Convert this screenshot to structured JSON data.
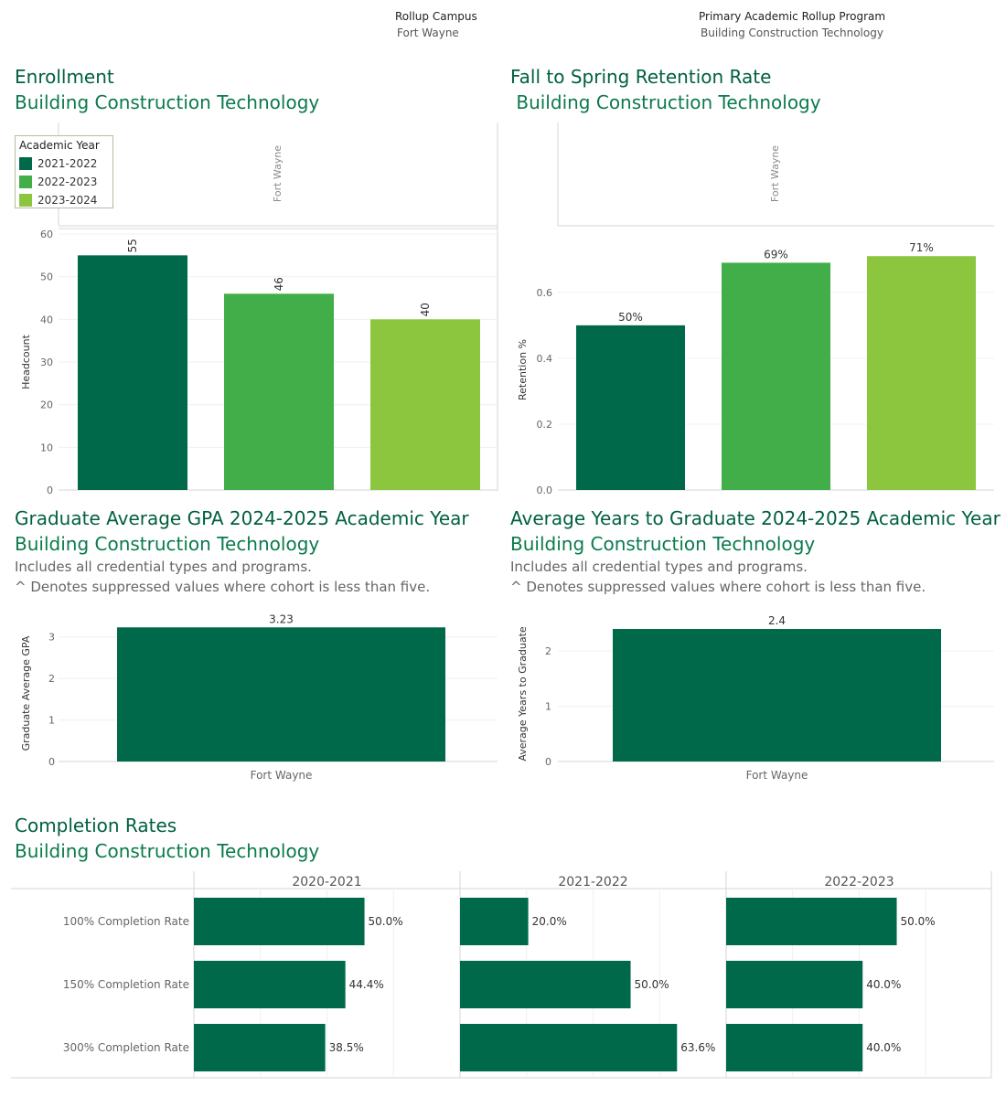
{
  "filters": {
    "campus_label": "Rollup Campus",
    "campus_value": "Fort Wayne",
    "program_label": "Primary Academic Rollup Program",
    "program_value": "Building Construction Technology"
  },
  "colors": {
    "dark_green": "#00694a",
    "mid_green": "#41ae4a",
    "light_green": "#8cc63f",
    "title_green": "#00613d"
  },
  "enrollment": {
    "title": "Enrollment",
    "subtitle": "Building Construction Technology",
    "panel_label": "Fort Wayne",
    "legend": {
      "title": "Academic Year",
      "items": [
        "2021-2022",
        "2022-2023",
        "2023-2024"
      ]
    }
  },
  "retention": {
    "title": "Fall to Spring Retention Rate",
    "subtitle": " Building Construction Technology",
    "panel_label": "Fort Wayne"
  },
  "gpa": {
    "title": "Graduate Average GPA 2024-2025 Academic Year",
    "subtitle": "Building Construction Technology",
    "note1": "Includes all credential types and programs.",
    "note2": "^ Denotes suppressed values where cohort is less than five."
  },
  "years": {
    "title": "Average Years to Graduate 2024-2025 Academic Year",
    "subtitle": "Building Construction Technology",
    "note1": "Includes all credential types and programs.",
    "note2": "^ Denotes suppressed values where cohort is less than five."
  },
  "completion": {
    "title": "Completion Rates",
    "subtitle": "Building Construction Technology"
  },
  "chart_data": [
    {
      "id": "enrollment",
      "type": "bar",
      "categories": [
        "2021-2022",
        "2022-2023",
        "2023-2024"
      ],
      "values": [
        55,
        46,
        40
      ],
      "labels": [
        "55",
        "46",
        "40"
      ],
      "ylabel": "Headcount",
      "ylim": [
        0,
        60
      ],
      "yticks": [
        0,
        10,
        20,
        30,
        40,
        50,
        60
      ],
      "grid": true
    },
    {
      "id": "retention",
      "type": "bar",
      "categories": [
        "2021-2022",
        "2022-2023",
        "2023-2024"
      ],
      "values": [
        0.5,
        0.69,
        0.71
      ],
      "labels": [
        "50%",
        "69%",
        "71%"
      ],
      "ylabel": "Retention %",
      "ylim": [
        0,
        0.73
      ],
      "yticks": [
        0.0,
        0.2,
        0.4,
        0.6
      ],
      "ytick_labels": [
        "0.0",
        "0.2",
        "0.4",
        "0.6"
      ],
      "grid": true
    },
    {
      "id": "gpa",
      "type": "bar",
      "categories": [
        "Fort Wayne"
      ],
      "values": [
        3.23
      ],
      "labels": [
        "3.23"
      ],
      "ylabel": "Graduate Average GPA",
      "ylim": [
        0,
        3.28
      ],
      "yticks": [
        0,
        1,
        2,
        3
      ],
      "grid": true
    },
    {
      "id": "years",
      "type": "bar",
      "categories": [
        "Fort Wayne"
      ],
      "values": [
        2.4
      ],
      "labels": [
        "2.4"
      ],
      "ylabel": "Average Years to Graduate",
      "ylim": [
        0,
        2.45
      ],
      "yticks": [
        0,
        1,
        2
      ],
      "grid": true
    },
    {
      "id": "completion",
      "type": "bar",
      "orientation": "horizontal",
      "rows": [
        "100% Completion Rate",
        "150% Completion Rate",
        "300% Completion Rate"
      ],
      "columns": [
        "2020-2021",
        "2021-2022",
        "2022-2023"
      ],
      "values": [
        [
          50.0,
          20.0,
          50.0
        ],
        [
          44.4,
          50.0,
          40.0
        ],
        [
          38.5,
          63.6,
          40.0
        ]
      ],
      "labels": [
        [
          "50.0%",
          "20.0%",
          "50.0%"
        ],
        [
          "44.4%",
          "50.0%",
          "40.0%"
        ],
        [
          "38.5%",
          "63.6%",
          "40.0%"
        ]
      ],
      "xlim": [
        0,
        78
      ]
    }
  ]
}
